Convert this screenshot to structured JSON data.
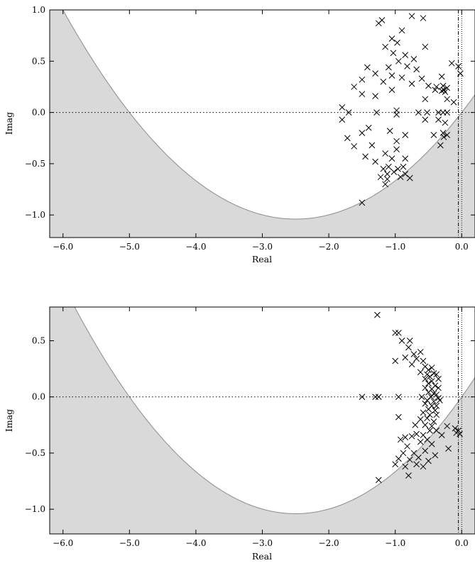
{
  "chart_data": [
    {
      "type": "scatter",
      "title": "",
      "xlabel": "Real",
      "ylabel": "Imag",
      "xlim": [
        -6.2,
        0.2
      ],
      "ylim": [
        -1.22,
        1.0
      ],
      "xticks": [
        -6.0,
        -5.0,
        -4.0,
        -3.0,
        -2.0,
        -1.0,
        0.0
      ],
      "xtick_labels": [
        "−6.0",
        "−5.0",
        "−4.0",
        "−3.0",
        "−2.0",
        "−1.0",
        "0.0"
      ],
      "yticks": [
        -1.0,
        -0.5,
        0.0,
        0.5,
        1.0
      ],
      "ytick_labels": [
        "−1.0",
        "−0.5",
        "0.0",
        "0.5",
        "1.0"
      ],
      "grid": false,
      "marker": "x",
      "shaded_region": {
        "description": "outside parabola",
        "vertex": [
          -2.5,
          -1.04
        ],
        "roots": [
          -5.0,
          0.0
        ],
        "color": "#d9d9d9"
      },
      "reference_lines": {
        "horizontal_dotted_y": 0.0,
        "vertical_dashdot_x": [
          -0.05,
          0.0
        ]
      },
      "points": [
        [
          -1.25,
          0.87
        ],
        [
          -0.75,
          0.94
        ],
        [
          -0.58,
          0.92
        ],
        [
          -1.2,
          0.9
        ],
        [
          -0.9,
          0.8
        ],
        [
          -1.05,
          0.72
        ],
        [
          -0.97,
          0.68
        ],
        [
          -1.15,
          0.64
        ],
        [
          -0.55,
          0.64
        ],
        [
          -1.03,
          0.58
        ],
        [
          -0.85,
          0.56
        ],
        [
          -0.72,
          0.52
        ],
        [
          -0.95,
          0.5
        ],
        [
          -1.1,
          0.44
        ],
        [
          -0.15,
          0.48
        ],
        [
          -0.05,
          0.45
        ],
        [
          -1.42,
          0.44
        ],
        [
          -0.82,
          0.45
        ],
        [
          -0.68,
          0.42
        ],
        [
          -1.3,
          0.38
        ],
        [
          -1.05,
          0.36
        ],
        [
          -0.9,
          0.34
        ],
        [
          -1.5,
          0.32
        ],
        [
          -0.6,
          0.33
        ],
        [
          -0.02,
          0.38
        ],
        [
          -0.3,
          0.35
        ],
        [
          -1.18,
          0.3
        ],
        [
          -0.75,
          0.28
        ],
        [
          -0.5,
          0.26
        ],
        [
          -1.62,
          0.25
        ],
        [
          -0.38,
          0.25
        ],
        [
          -0.28,
          0.26
        ],
        [
          -0.22,
          0.24
        ],
        [
          -0.27,
          0.22
        ],
        [
          -0.25,
          0.2
        ],
        [
          -0.3,
          0.21
        ],
        [
          -0.4,
          0.22
        ],
        [
          -1.05,
          0.22
        ],
        [
          -1.5,
          0.18
        ],
        [
          -1.3,
          0.16
        ],
        [
          -0.55,
          0.13
        ],
        [
          -0.22,
          0.13
        ],
        [
          -0.12,
          0.1
        ],
        [
          -1.8,
          0.05
        ],
        [
          -1.7,
          0.0
        ],
        [
          -1.28,
          0.0
        ],
        [
          -0.98,
          0.02
        ],
        [
          -0.98,
          -0.02
        ],
        [
          -0.65,
          0.0
        ],
        [
          -0.52,
          0.0
        ],
        [
          -0.35,
          0.0
        ],
        [
          -0.28,
          0.0
        ],
        [
          -0.22,
          0.0
        ],
        [
          -1.8,
          -0.07
        ],
        [
          -0.35,
          -0.07
        ],
        [
          -0.55,
          -0.07
        ],
        [
          -0.25,
          -0.1
        ],
        [
          -1.4,
          -0.15
        ],
        [
          -1.5,
          -0.2
        ],
        [
          -1.08,
          -0.18
        ],
        [
          -0.85,
          -0.22
        ],
        [
          -0.42,
          -0.22
        ],
        [
          -0.28,
          -0.2
        ],
        [
          -0.22,
          -0.22
        ],
        [
          -0.27,
          -0.24
        ],
        [
          -1.72,
          -0.25
        ],
        [
          -0.98,
          -0.28
        ],
        [
          -1.62,
          -0.33
        ],
        [
          -1.35,
          -0.32
        ],
        [
          -0.32,
          -0.32
        ],
        [
          -0.98,
          -0.36
        ],
        [
          -1.15,
          -0.4
        ],
        [
          -1.45,
          -0.43
        ],
        [
          -1.05,
          -0.45
        ],
        [
          -0.85,
          -0.45
        ],
        [
          -1.3,
          -0.48
        ],
        [
          -1.18,
          -0.55
        ],
        [
          -1.1,
          -0.53
        ],
        [
          -0.96,
          -0.55
        ],
        [
          -0.88,
          -0.53
        ],
        [
          -1.02,
          -0.58
        ],
        [
          -1.12,
          -0.6
        ],
        [
          -0.85,
          -0.6
        ],
        [
          -1.22,
          -0.63
        ],
        [
          -1.12,
          -0.65
        ],
        [
          -0.92,
          -0.63
        ],
        [
          -0.78,
          -0.64
        ],
        [
          -1.15,
          -0.7
        ],
        [
          -1.5,
          -0.88
        ]
      ]
    },
    {
      "type": "scatter",
      "title": "",
      "xlabel": "Real",
      "ylabel": "Imag",
      "xlim": [
        -6.2,
        0.2
      ],
      "ylim": [
        -1.22,
        0.8
      ],
      "xticks": [
        -6.0,
        -5.0,
        -4.0,
        -3.0,
        -2.0,
        -1.0,
        0.0
      ],
      "xtick_labels": [
        "−6.0",
        "−5.0",
        "−4.0",
        "−3.0",
        "−2.0",
        "−1.0",
        "0.0"
      ],
      "yticks": [
        -1.0,
        -0.5,
        0.0,
        0.5
      ],
      "ytick_labels": [
        "−1.0",
        "−0.5",
        "0.0",
        "0.5"
      ],
      "grid": false,
      "marker": "x",
      "shaded_region": {
        "description": "outside parabola",
        "vertex": [
          -2.5,
          -1.04
        ],
        "roots": [
          -5.0,
          0.0
        ],
        "color": "#d9d9d9"
      },
      "reference_lines": {
        "horizontal_dotted_y": 0.0,
        "vertical_dashdot_x": [
          -0.05,
          0.0
        ]
      },
      "points": [
        [
          -1.27,
          0.73
        ],
        [
          -0.95,
          0.57
        ],
        [
          -1.0,
          0.57
        ],
        [
          -0.9,
          0.5
        ],
        [
          -0.78,
          0.5
        ],
        [
          -0.8,
          0.44
        ],
        [
          -0.72,
          0.38
        ],
        [
          -0.62,
          0.4
        ],
        [
          -0.85,
          0.35
        ],
        [
          -0.68,
          0.34
        ],
        [
          -0.58,
          0.32
        ],
        [
          -1.0,
          0.32
        ],
        [
          -0.75,
          0.29
        ],
        [
          -0.55,
          0.27
        ],
        [
          -0.5,
          0.24
        ],
        [
          -0.45,
          0.26
        ],
        [
          -0.62,
          0.22
        ],
        [
          -0.52,
          0.2
        ],
        [
          -0.42,
          0.21
        ],
        [
          -0.48,
          0.18
        ],
        [
          -0.38,
          0.2
        ],
        [
          -0.55,
          0.16
        ],
        [
          -0.45,
          0.14
        ],
        [
          -0.35,
          0.16
        ],
        [
          -0.5,
          0.12
        ],
        [
          -0.4,
          0.1
        ],
        [
          -0.55,
          0.08
        ],
        [
          -0.45,
          0.07
        ],
        [
          -0.35,
          0.08
        ],
        [
          -0.5,
          0.04
        ],
        [
          -0.42,
          0.03
        ],
        [
          -0.38,
          0.02
        ],
        [
          -0.6,
          0.0
        ],
        [
          -0.46,
          0.0
        ],
        [
          -0.35,
          -0.01
        ],
        [
          -0.52,
          -0.03
        ],
        [
          -0.42,
          -0.04
        ],
        [
          -0.33,
          -0.03
        ],
        [
          -1.5,
          0.0
        ],
        [
          -1.3,
          0.0
        ],
        [
          -1.25,
          0.0
        ],
        [
          -0.95,
          0.0
        ],
        [
          -0.55,
          -0.06
        ],
        [
          -0.45,
          -0.08
        ],
        [
          -0.38,
          -0.08
        ],
        [
          -0.5,
          -0.11
        ],
        [
          -0.4,
          -0.12
        ],
        [
          -0.58,
          -0.14
        ],
        [
          -0.48,
          -0.16
        ],
        [
          -0.38,
          -0.16
        ],
        [
          -0.62,
          -0.2
        ],
        [
          -0.52,
          -0.19
        ],
        [
          -0.42,
          -0.22
        ],
        [
          -0.95,
          -0.18
        ],
        [
          -0.7,
          -0.25
        ],
        [
          -0.55,
          -0.25
        ],
        [
          -0.45,
          -0.26
        ],
        [
          -0.48,
          -0.3
        ],
        [
          -0.38,
          -0.3
        ],
        [
          -0.22,
          -0.26
        ],
        [
          -0.1,
          -0.28
        ],
        [
          -0.05,
          -0.3
        ],
        [
          -0.08,
          -0.32
        ],
        [
          -0.03,
          -0.33
        ],
        [
          -0.58,
          -0.34
        ],
        [
          -0.68,
          -0.33
        ],
        [
          -0.75,
          -0.35
        ],
        [
          -0.3,
          -0.34
        ],
        [
          -0.85,
          -0.36
        ],
        [
          -0.52,
          -0.38
        ],
        [
          -0.62,
          -0.4
        ],
        [
          -0.92,
          -0.38
        ],
        [
          -0.45,
          -0.42
        ],
        [
          -0.82,
          -0.44
        ],
        [
          -0.2,
          -0.46
        ],
        [
          -0.55,
          -0.48
        ],
        [
          -0.72,
          -0.5
        ],
        [
          -0.88,
          -0.5
        ],
        [
          -0.4,
          -0.52
        ],
        [
          -0.65,
          -0.54
        ],
        [
          -0.95,
          -0.55
        ],
        [
          -0.78,
          -0.56
        ],
        [
          -0.5,
          -0.57
        ],
        [
          -1.0,
          -0.6
        ],
        [
          -0.68,
          -0.6
        ],
        [
          -0.85,
          -0.62
        ],
        [
          -0.58,
          -0.62
        ],
        [
          -0.8,
          -0.7
        ],
        [
          -1.25,
          -0.74
        ]
      ]
    }
  ]
}
